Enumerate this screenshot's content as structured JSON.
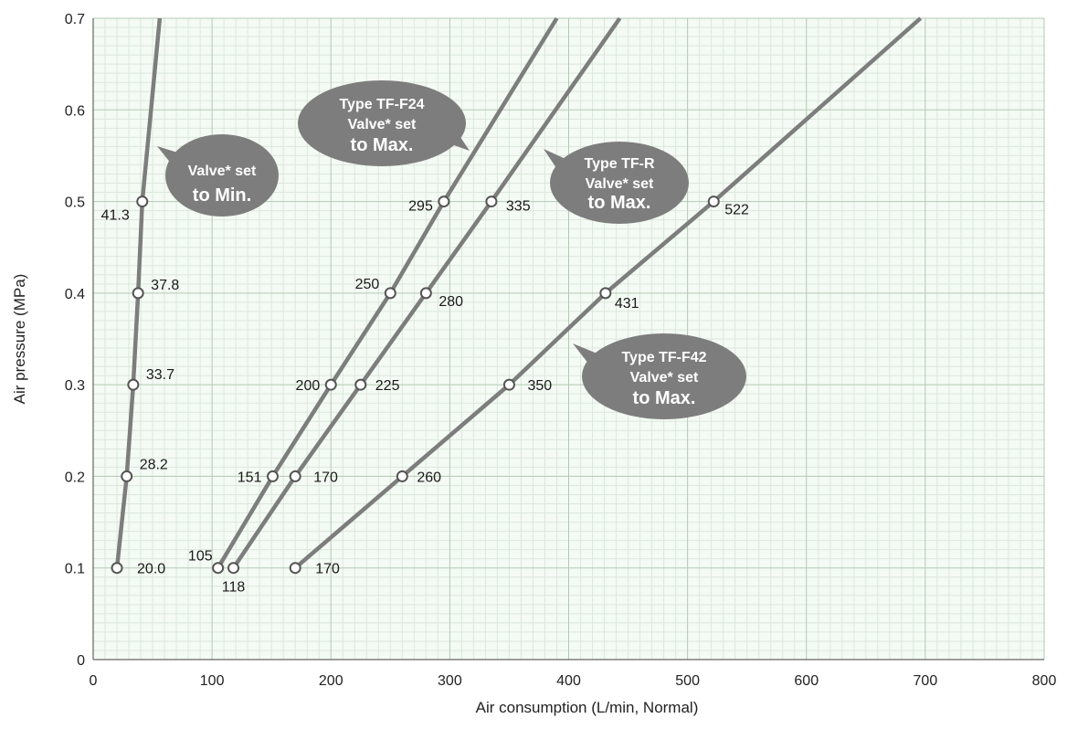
{
  "chart_data": {
    "type": "line",
    "title": "",
    "xlabel": "Air consumption (L/min, Normal)",
    "ylabel": "Air pressure (MPa)",
    "xlim": [
      0,
      800
    ],
    "ylim": [
      0,
      0.7
    ],
    "x_ticks": [
      0,
      100,
      200,
      300,
      400,
      500,
      600,
      700,
      800
    ],
    "y_ticks": [
      0,
      0.1,
      0.2,
      0.3,
      0.4,
      0.5,
      0.6,
      0.7
    ],
    "x_tick_labels": [
      "0",
      "100",
      "200",
      "300",
      "400",
      "500",
      "600",
      "700",
      "800"
    ],
    "y_tick_labels": [
      "0",
      "0.1",
      "0.2",
      "0.3",
      "0.4",
      "0.5",
      "0.6",
      "0.7"
    ],
    "grid": true,
    "line_color": "#7d7d7d",
    "grid_color_major": "#b4c9b4",
    "grid_color_minor": "#dce8dc",
    "plot_background": "#f4faf4",
    "series": [
      {
        "points": [
          {
            "x": 20.0,
            "y": 0.1,
            "label": "20.0"
          },
          {
            "x": 28.2,
            "y": 0.2,
            "label": "28.2"
          },
          {
            "x": 33.7,
            "y": 0.3,
            "label": "33.7"
          },
          {
            "x": 37.8,
            "y": 0.4,
            "label": "37.8"
          },
          {
            "x": 41.3,
            "y": 0.5,
            "label": "41.3"
          }
        ],
        "line_end": {
          "x": 56,
          "y": 0.7
        },
        "callout": [
          "Valve* set",
          "to Min."
        ]
      },
      {
        "points": [
          {
            "x": 105,
            "y": 0.1,
            "label": "105"
          },
          {
            "x": 151,
            "y": 0.2,
            "label": "151"
          },
          {
            "x": 200,
            "y": 0.3,
            "label": "200"
          },
          {
            "x": 250,
            "y": 0.4,
            "label": "250"
          },
          {
            "x": 295,
            "y": 0.5,
            "label": "295"
          }
        ],
        "line_end": {
          "x": 390,
          "y": 0.7
        },
        "callout": [
          "Type TF-F24",
          "Valve* set",
          "to Max."
        ]
      },
      {
        "points": [
          {
            "x": 118,
            "y": 0.1,
            "label": "118"
          },
          {
            "x": 170,
            "y": 0.2,
            "label": "170"
          },
          {
            "x": 225,
            "y": 0.3,
            "label": "225"
          },
          {
            "x": 280,
            "y": 0.4,
            "label": "280"
          },
          {
            "x": 335,
            "y": 0.5,
            "label": "335"
          }
        ],
        "line_end": {
          "x": 443,
          "y": 0.7
        },
        "callout": [
          "Type TF-R",
          "Valve* set",
          "to Max."
        ]
      },
      {
        "points": [
          {
            "x": 170,
            "y": 0.1,
            "label": "170"
          },
          {
            "x": 260,
            "y": 0.2,
            "label": "260"
          },
          {
            "x": 350,
            "y": 0.3,
            "label": "350"
          },
          {
            "x": 431,
            "y": 0.4,
            "label": "431"
          },
          {
            "x": 522,
            "y": 0.5,
            "label": "522"
          }
        ],
        "line_end": {
          "x": 696,
          "y": 0.7
        },
        "callout": [
          "Type TF-F42",
          "Valve* set",
          "to Max."
        ]
      }
    ]
  }
}
